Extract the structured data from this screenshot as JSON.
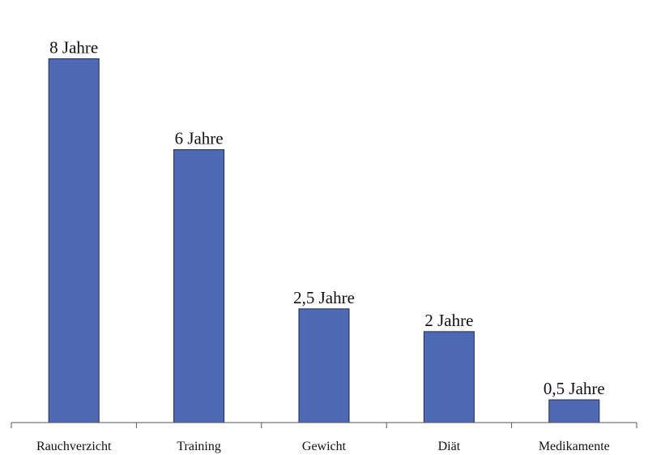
{
  "chart_data": {
    "type": "bar",
    "categories": [
      "Rauchverzicht",
      "Training",
      "Gewicht",
      "Diät",
      "Medikamente"
    ],
    "values": [
      8,
      6,
      2.5,
      2,
      0.5
    ],
    "data_labels": [
      "8 Jahre",
      "6 Jahre",
      "2,5 Jahre",
      "2 Jahre",
      "0,5 Jahre"
    ],
    "ylim": [
      0,
      8.4
    ],
    "grid": false,
    "legend": "none",
    "colors": {
      "bar": "#4e6ab5",
      "bar_border": "#1f2a4a"
    }
  }
}
